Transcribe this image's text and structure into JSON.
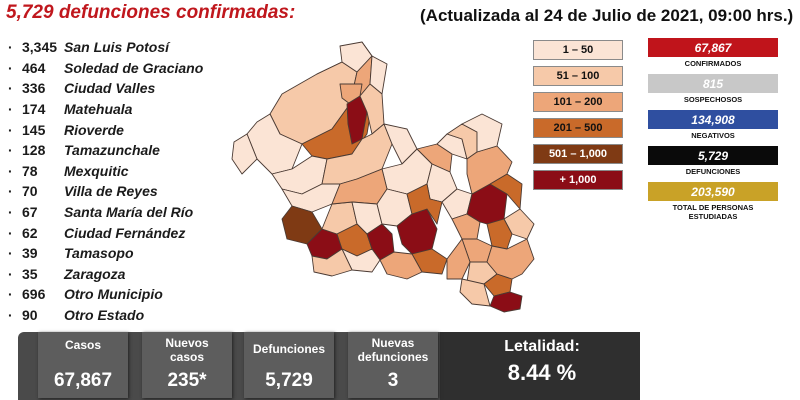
{
  "title": "5,729 defunciones confirmadas:",
  "header_line": "(Actualizada al 24 de Julio de 2021, 09:00 hrs.)",
  "municipalities": [
    {
      "count": "3,345",
      "name": "San Luis Potosí"
    },
    {
      "count": "464",
      "name": "Soledad de Graciano"
    },
    {
      "count": "336",
      "name": "Ciudad Valles"
    },
    {
      "count": "174",
      "name": "Matehuala"
    },
    {
      "count": "145",
      "name": "Rioverde"
    },
    {
      "count": "128",
      "name": "Tamazunchale"
    },
    {
      "count": "78",
      "name": "Mexquitic"
    },
    {
      "count": "70",
      "name": "Villa de Reyes"
    },
    {
      "count": "67",
      "name": "Santa María del Río"
    },
    {
      "count": "62",
      "name": "Ciudad Fernández"
    },
    {
      "count": "39",
      "name": "Tamasopo"
    },
    {
      "count": "35",
      "name": "Zaragoza"
    },
    {
      "count": "696",
      "name": "Otro Municipio"
    },
    {
      "count": "90",
      "name": "Otro Estado"
    }
  ],
  "legend": [
    {
      "label": "1 – 50",
      "color": "#fbe4d5",
      "text_color": "#111111"
    },
    {
      "label": "51 – 100",
      "color": "#f6c9a9",
      "text_color": "#111111"
    },
    {
      "label": "101 – 200",
      "color": "#eda679",
      "text_color": "#111111"
    },
    {
      "label": "201 – 500",
      "color": "#c96a2a",
      "text_color": "#111111"
    },
    {
      "label": "501 – 1,000",
      "color": "#7f3a14",
      "text_color": "#ffffff"
    },
    {
      "label": "+ 1,000",
      "color": "#8b0d16",
      "text_color": "#ffffff"
    }
  ],
  "stats": [
    {
      "value": "67,867",
      "label": "CONFIRMADOS",
      "bg": "#c0141b",
      "color": "#ffffff"
    },
    {
      "value": "815",
      "label": "SOSPECHOSOS",
      "bg": "#c8c8c8",
      "color": "#ffffff"
    },
    {
      "value": "134,908",
      "label": "NEGATIVOS",
      "bg": "#2f4fa0",
      "color": "#ffffff"
    },
    {
      "value": "5,729",
      "label": "DEFUNCIONES",
      "bg": "#0a0a0a",
      "color": "#ffffff"
    },
    {
      "value": "203,590",
      "label": "TOTAL DE PERSONAS ESTUDIADAS",
      "bg": "#c9a227",
      "color": "#ffffff"
    }
  ],
  "bottom": {
    "casos_label": "Casos",
    "casos_value": "67,867",
    "nuevos_label": "Nuevos casos",
    "nuevos_value": "235*",
    "defunciones_label": "Defunciones",
    "defunciones_value": "5,729",
    "nuevas_def_label": "Nuevas defunciones",
    "nuevas_def_value": "3",
    "letalidad_label": "Letalidad:",
    "letalidad_value": "8.44 %"
  },
  "map_colors": {
    "outline": "#4a3a33",
    "c1": "#fbe4d5",
    "c2": "#f6c9a9",
    "c3": "#eda679",
    "c4": "#c96a2a",
    "c5": "#7f3a14",
    "c6": "#8b0d16"
  }
}
